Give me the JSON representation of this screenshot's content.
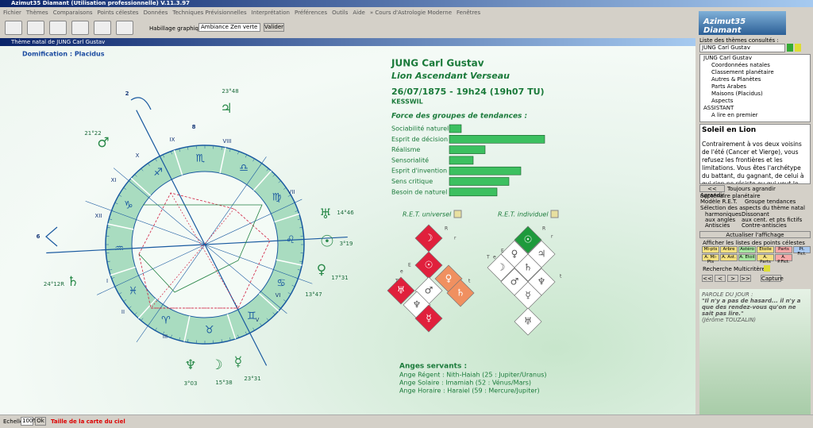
{
  "app": {
    "title": "Azimut35 Diamant (Utilisation professionnelle) V.11.3.97",
    "menu": [
      "Fichier",
      "Thèmes",
      "Comparaisons",
      "Points célestes",
      "Données",
      "Techniques Prévisionnelles",
      "Interprétation",
      "Préférences",
      "Outils",
      "Aide",
      "» Cours d'Astrologie Moderne",
      "Fenêtres"
    ],
    "logo": "Azimut35 Diamant",
    "toolbar": {
      "label": "Habillage graphique",
      "select": "Ambiance Zen verte",
      "button": "Valider"
    },
    "window_title": "Thème natal de JUNG Carl Gustav"
  },
  "chart": {
    "domification": "Domification : Placidus",
    "name": "JUNG Carl Gustav",
    "subtitle": "Lion Ascendant Verseau",
    "date": "26/07/1875 - 19h24 (19h07 TU)",
    "place": "KESSWIL",
    "tendencies": {
      "title": "Force des groupes de tendances :",
      "color": "#3cc060",
      "items": [
        {
          "label": "Sociabilité naturelle",
          "value": 1
        },
        {
          "label": "Esprit de décision",
          "value": 8
        },
        {
          "label": "Réalisme",
          "value": 3
        },
        {
          "label": "Sensorialité",
          "value": 2
        },
        {
          "label": "Esprit d'invention",
          "value": 6
        },
        {
          "label": "Sens critique",
          "value": 5
        },
        {
          "label": "Besoin de naturel",
          "value": 4
        }
      ]
    },
    "ret_universal": {
      "title": "R.E.T. universel",
      "letters": [
        "R",
        "r",
        "E",
        "e",
        "T",
        "t"
      ],
      "cells": [
        {
          "glyph": "☽",
          "color": "#e0203c"
        },
        {
          "glyph": "☉",
          "color": "#e0203c"
        },
        {
          "glyph": "♀",
          "color": "#f09060"
        },
        {
          "glyph": "♅",
          "color": "#e0203c"
        },
        {
          "glyph": "♂",
          "color": "#ffffff"
        },
        {
          "glyph": "♄",
          "color": "#f09060"
        },
        {
          "glyph": "♆",
          "color": "#ffffff"
        },
        {
          "glyph": "☿",
          "color": "#e0203c"
        }
      ]
    },
    "ret_individual": {
      "title": "R.E.T. individuel",
      "letters": [
        "R",
        "r",
        "E",
        "e",
        "T",
        "t"
      ],
      "cells": [
        {
          "glyph": "☉",
          "color": "#1e9a3c"
        },
        {
          "glyph": "♀",
          "color": "#ffffff"
        },
        {
          "glyph": "♃",
          "color": "#ffffff"
        },
        {
          "glyph": "☽",
          "color": "#ffffff"
        },
        {
          "glyph": "♄",
          "color": "#ffffff"
        },
        {
          "glyph": "♂",
          "color": "#ffffff"
        },
        {
          "glyph": "♆",
          "color": "#ffffff"
        },
        {
          "glyph": "☿",
          "color": "#ffffff"
        },
        {
          "glyph": "♅",
          "color": "#ffffff"
        }
      ]
    },
    "angels": {
      "title": "Anges servants :",
      "lines": [
        "Ange Régent : Nith-Haiah (25 : Jupiter/Uranus)",
        "Ange Solaire : Imamiah (52 : Vénus/Mars)",
        "Ange Horaire : Haraiel (59 : Mercure/Jupiter)"
      ]
    },
    "signs": [
      "♒",
      "♓",
      "♈",
      "♉",
      "♊",
      "♋",
      "♌",
      "♍",
      "♎",
      "♏",
      "♐",
      "♑"
    ],
    "planets": [
      {
        "glyph": "♃",
        "degree": "23°48"
      },
      {
        "glyph": "♂",
        "degree": "21°22"
      },
      {
        "glyph": "♅",
        "degree": "14°46"
      },
      {
        "glyph": "☉",
        "degree": "3°19"
      },
      {
        "glyph": "♀",
        "degree": "17°31"
      },
      {
        "glyph": "♄",
        "degree": "24°12R"
      },
      {
        "glyph": "♆",
        "degree": "3°03"
      },
      {
        "glyph": "☽",
        "degree": "15°38"
      },
      {
        "glyph": "☿",
        "degree": "23°31"
      }
    ],
    "extra_degrees": [
      "13°47"
    ],
    "houses": [
      "2",
      "8",
      "IX",
      "VIII",
      "X",
      "XI",
      "VII",
      "XII",
      "6",
      "I",
      "II",
      "III",
      "V",
      "VI"
    ]
  },
  "panel": {
    "list_title": "Liste des thèmes consultés :",
    "list_select": "JUNG Carl Gustav",
    "tree": [
      "JUNG Carl Gustav",
      "Coordonnées natales",
      "Classement planétaire",
      "Autres & Planètes",
      "Parts Arabes",
      "Maisons (Placidus)",
      "Aspects",
      "ASSISTANT",
      "A lire en premier"
    ],
    "text_title": "Soleil en Lion",
    "text_body": "Contrairement à vos deux voisins de l'été (Cancer et Vierge), vous refusez les frontières et les limitations. Vous êtes l'archétype du battant, du gagnant, de celui à qui rien ne résiste ou qui veut le",
    "enlarge": "<< Agrandir",
    "always": "Toujours agrandir",
    "options": [
      "Septénaire planétaire",
      "Modèle R.E.T.",
      "Groupe tendances"
    ],
    "aspects_title": "Sélection des aspects du thème natal",
    "aspects": [
      "harmoniques",
      "Dissonant",
      "aux angles",
      "aux cent. et pts fictifs",
      "Antiscies",
      "Contre-antiscies"
    ],
    "refresh": "Actualiser l'affichage",
    "lists_title": "Afficher les listes des points célestes",
    "list_buttons": [
      "Mi-pts",
      "Arbre",
      "Astéro",
      "Etoile",
      "Parts",
      "Pt. Fict.",
      "A. Mi-Pts",
      "A. Ast.",
      "A. Etoil",
      "A. Parts",
      "A. P.Fict."
    ],
    "search": "Recherche Multicritère",
    "nav": [
      "<<",
      "<",
      ">",
      ">>",
      "Capture"
    ],
    "quote_title": "PAROLE DU JOUR :",
    "quote": "\"Il n'y a pas de hasard... il n'y a que des rendez-vous qu'on ne sait pas lire.\"",
    "quote_author": "(Jérôme TOUZALIN)"
  },
  "status": {
    "label": "Echelle",
    "value": "100%",
    "button": "Ok",
    "hint": "Taille de la carte du ciel"
  }
}
